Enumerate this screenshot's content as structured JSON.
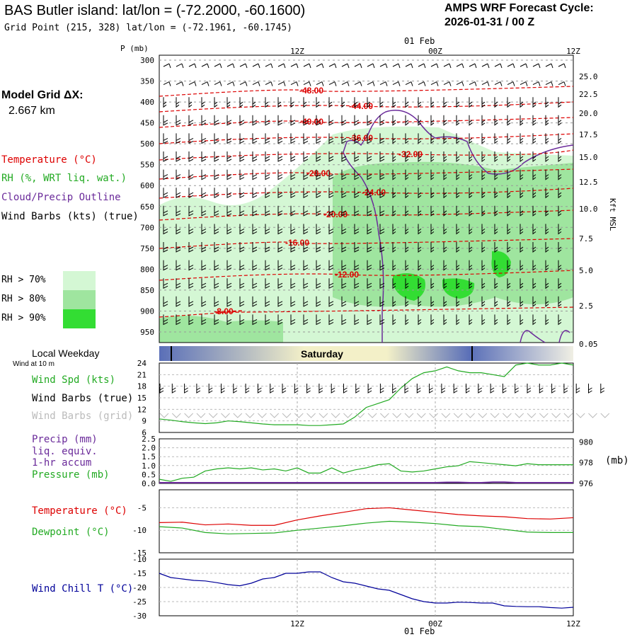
{
  "header": {
    "title": "BAS Butler island:  lat/lon = (-72.2000, -60.1600)",
    "subtitle": "Grid Point (215, 328) lat/lon = (-72.1961, -60.1745)",
    "cycle_label": "AMPS WRF Forecast Cycle:",
    "cycle_value": "2026-01-31 / 00  Z"
  },
  "left_legend": {
    "model_grid_label": "Model Grid ΔX:",
    "model_grid_value": "2.667 km",
    "temperature": "Temperature (°C)",
    "rh": "RH (%, WRT liq. wat.)",
    "cloud": "Cloud/Precip Outline",
    "wind_barbs": "Wind Barbs (kts) (true)",
    "rh70": "RH > 70%",
    "rh80": "RH > 80%",
    "rh90": "RH > 90%",
    "local_weekday": "Local Weekday",
    "wind_at_10m": "Wind at 10 m",
    "wind_spd": "Wind Spd (kts)",
    "wind_barbs_true": "Wind Barbs (true)",
    "wind_barbs_grid": "Wind Barbs (grid)",
    "precip": "Precip (mm)",
    "liq_equiv": "liq. equiv.",
    "hr_accum": "1-hr accum",
    "pressure": "Pressure (mb)",
    "temp_series": "Temperature (°C)",
    "dewpoint": "Dewpoint (°C)",
    "wind_chill": "Wind Chill T (°C)"
  },
  "colors": {
    "temperature": "#dd0000",
    "rh": "#22aa22",
    "cloud": "#6a2a9a",
    "rh70": "#d4f7d4",
    "rh80": "#9fe59f",
    "rh90": "#33dd33",
    "windchill": "#000099",
    "grid_barbs": "#bbbbbb",
    "weekday_dark": "#5a6fb8",
    "weekday_light": "#f3f0c8"
  },
  "time_axis": {
    "top_labels": [
      "12Z",
      "00Z",
      "12Z"
    ],
    "date_label": "01 Feb",
    "weekday": "Saturday"
  },
  "chart_data": [
    {
      "type": "heatmap",
      "name": "cross_section",
      "pressure_axis_label": "P (mb)",
      "pressure_ticks": [
        300,
        350,
        400,
        450,
        500,
        550,
        600,
        650,
        700,
        750,
        800,
        850,
        900,
        950
      ],
      "height_axis_label": "Kft MSL",
      "height_ticks": [
        "25.0",
        "22.5",
        "20.0",
        "17.5",
        "15.0",
        "12.5",
        "10.0",
        "7.5",
        "5.0",
        "2.5",
        "0.05"
      ],
      "temperature_contour_labels": [
        "-48.00",
        "-44.00",
        "-40.00",
        "-36.00",
        "-32.00",
        "-28.00",
        "-24.00",
        "-20.00",
        "-16.00",
        "-12.00",
        "-8.00"
      ]
    },
    {
      "type": "line",
      "name": "wind_speed",
      "yticks": [
        6,
        9,
        12,
        15,
        18,
        21,
        24
      ],
      "ylim": [
        6,
        24
      ],
      "x_hours": [
        0,
        1,
        2,
        3,
        4,
        5,
        6,
        7,
        8,
        9,
        10,
        11,
        12,
        13,
        14,
        15,
        16,
        17,
        18,
        19,
        20,
        21,
        22,
        23,
        24,
        25,
        26,
        27,
        28,
        29,
        30,
        31,
        32,
        33,
        34,
        35,
        36
      ],
      "values": [
        9.5,
        9.2,
        8.8,
        8.5,
        8.3,
        8.5,
        9.0,
        8.8,
        8.5,
        8.2,
        8.0,
        8.0,
        8.0,
        7.8,
        7.8,
        8.0,
        8.2,
        10.0,
        12.5,
        13.5,
        14.5,
        17.5,
        20.0,
        21.5,
        22.0,
        23.0,
        22.0,
        21.5,
        21.5,
        21.0,
        20.5,
        23.5,
        24.0,
        23.5,
        23.5,
        24.0,
        23.5
      ]
    },
    {
      "type": "line",
      "name": "precip_pressure",
      "left_yticks": [
        "0.0",
        "0.5",
        "1.0",
        "1.5",
        "2.0",
        "2.5"
      ],
      "right_yticks": [
        976,
        978,
        980
      ],
      "right_unit": "(mb)",
      "x_hours": [
        0,
        1,
        2,
        3,
        4,
        5,
        6,
        7,
        8,
        9,
        10,
        11,
        12,
        13,
        14,
        15,
        16,
        17,
        18,
        19,
        20,
        21,
        22,
        23,
        24,
        25,
        26,
        27,
        28,
        29,
        30,
        31,
        32,
        33,
        34,
        35,
        36
      ],
      "pressure": [
        976.4,
        976.2,
        976.5,
        976.6,
        977.2,
        977.4,
        977.5,
        977.4,
        977.5,
        977.3,
        977.4,
        977.2,
        977.5,
        977.0,
        977.0,
        977.5,
        977.0,
        977.3,
        977.5,
        977.8,
        977.9,
        977.2,
        977.1,
        977.2,
        977.4,
        977.6,
        977.7,
        978.1,
        978.0,
        977.9,
        977.8,
        977.7,
        977.9,
        977.8,
        977.8,
        977.8,
        977.8
      ],
      "precip": [
        0,
        0,
        0,
        0,
        0,
        0,
        0,
        0,
        0,
        0,
        0,
        0,
        0,
        0,
        0,
        0,
        0,
        0,
        0,
        0,
        0,
        0,
        0,
        0,
        0,
        0.02,
        0.02,
        0,
        0,
        0.03,
        0.03,
        0,
        0,
        0,
        0,
        0,
        0
      ]
    },
    {
      "type": "line",
      "name": "temperature_dewpoint",
      "yticks": [
        -5,
        -10,
        -15
      ],
      "ylim": [
        -15,
        -1
      ],
      "x_hours": [
        0,
        2,
        4,
        6,
        8,
        10,
        12,
        14,
        16,
        18,
        20,
        22,
        24,
        26,
        28,
        30,
        32,
        34,
        36
      ],
      "temperature": [
        -8.3,
        -8.2,
        -8.8,
        -8.6,
        -8.9,
        -8.9,
        -7.7,
        -6.8,
        -6.0,
        -5.2,
        -5.0,
        -5.5,
        -6.0,
        -6.5,
        -6.8,
        -7.0,
        -7.4,
        -7.5,
        -7.2
      ],
      "dewpoint": [
        -9.2,
        -9.5,
        -10.5,
        -10.8,
        -10.7,
        -10.6,
        -10.0,
        -9.5,
        -9.0,
        -8.4,
        -8.0,
        -8.2,
        -8.5,
        -9.0,
        -9.2,
        -9.8,
        -10.4,
        -10.5,
        -10.5
      ]
    },
    {
      "type": "line",
      "name": "wind_chill",
      "yticks": [
        -10,
        -15,
        -20,
        -25,
        -30
      ],
      "ylim": [
        -30,
        -10
      ],
      "x_hours": [
        0,
        1,
        2,
        3,
        4,
        5,
        6,
        7,
        8,
        9,
        10,
        11,
        12,
        13,
        14,
        15,
        16,
        17,
        18,
        19,
        20,
        21,
        22,
        23,
        24,
        25,
        26,
        27,
        28,
        29,
        30,
        31,
        32,
        33,
        34,
        35,
        36
      ],
      "values": [
        -15.0,
        -16.5,
        -17.0,
        -17.5,
        -17.7,
        -18.3,
        -19.0,
        -19.4,
        -18.5,
        -17.0,
        -16.5,
        -15.0,
        -15.0,
        -14.5,
        -14.5,
        -16.5,
        -18.0,
        -18.5,
        -19.5,
        -20.5,
        -21.0,
        -22.5,
        -24.0,
        -25.0,
        -25.5,
        -25.5,
        -25.2,
        -25.3,
        -25.5,
        -25.5,
        -26.5,
        -26.7,
        -26.8,
        -26.8,
        -27.1,
        -27.3,
        -27.0
      ]
    }
  ]
}
